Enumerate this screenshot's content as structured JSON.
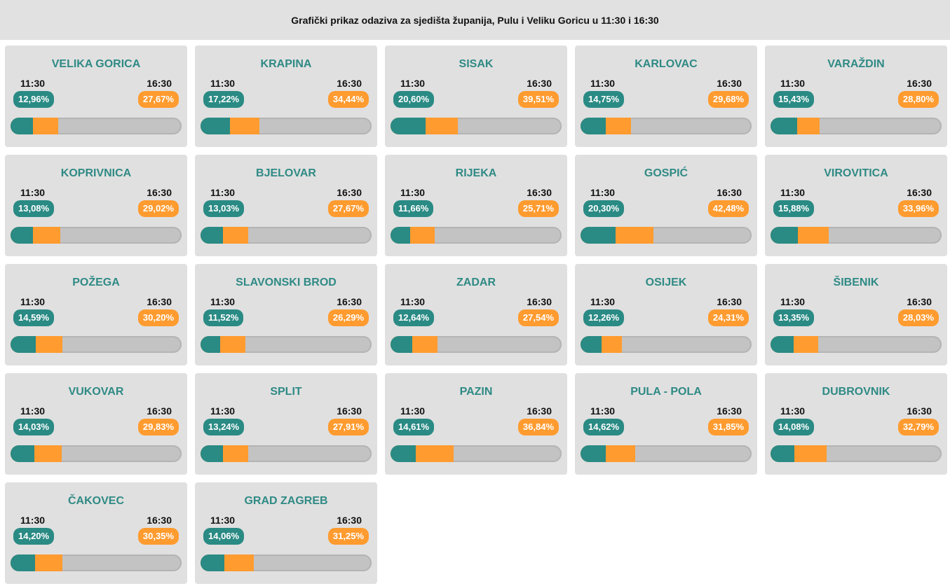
{
  "title": "Grafički prikaz odaziva za sjedišta županija, Pulu i Veliku Goricu u 11:30 i 16:30",
  "colors": {
    "teal": "#2a8a84",
    "orange": "#ff9b2f",
    "track": "#c3c3c3"
  },
  "chart_data": {
    "type": "bar",
    "title": "Grafički prikaz odaziva za sjedišta županija, Pulu i Veliku Goricu u 11:30 i 16:30",
    "series_names": [
      "11:30",
      "16:30"
    ],
    "bar_max_percent": 100,
    "cities": [
      {
        "name": "VELIKA GORICA",
        "t1": "11:30",
        "t2": "16:30",
        "v1": 12.96,
        "v2": 27.67,
        "label1": "12,96%",
        "label2": "27,67%"
      },
      {
        "name": "KRAPINA",
        "t1": "11:30",
        "t2": "16:30",
        "v1": 17.22,
        "v2": 34.44,
        "label1": "17,22%",
        "label2": "34,44%"
      },
      {
        "name": "SISAK",
        "t1": "11:30",
        "t2": "16:30",
        "v1": 20.6,
        "v2": 39.51,
        "label1": "20,60%",
        "label2": "39,51%"
      },
      {
        "name": "KARLOVAC",
        "t1": "11:30",
        "t2": "16:30",
        "v1": 14.75,
        "v2": 29.68,
        "label1": "14,75%",
        "label2": "29,68%"
      },
      {
        "name": "VARAŽDIN",
        "t1": "11:30",
        "t2": "16:30",
        "v1": 15.43,
        "v2": 28.8,
        "label1": "15,43%",
        "label2": "28,80%"
      },
      {
        "name": "KOPRIVNICA",
        "t1": "11:30",
        "t2": "16:30",
        "v1": 13.08,
        "v2": 29.02,
        "label1": "13,08%",
        "label2": "29,02%"
      },
      {
        "name": "BJELOVAR",
        "t1": "11:30",
        "t2": "16:30",
        "v1": 13.03,
        "v2": 27.67,
        "label1": "13,03%",
        "label2": "27,67%"
      },
      {
        "name": "RIJEKA",
        "t1": "11:30",
        "t2": "16:30",
        "v1": 11.66,
        "v2": 25.71,
        "label1": "11,66%",
        "label2": "25,71%"
      },
      {
        "name": "GOSPIĆ",
        "t1": "11:30",
        "t2": "16:30",
        "v1": 20.3,
        "v2": 42.48,
        "label1": "20,30%",
        "label2": "42,48%"
      },
      {
        "name": "VIROVITICA",
        "t1": "11:30",
        "t2": "16:30",
        "v1": 15.88,
        "v2": 33.96,
        "label1": "15,88%",
        "label2": "33,96%"
      },
      {
        "name": "POŽEGA",
        "t1": "11:30",
        "t2": "16:30",
        "v1": 14.59,
        "v2": 30.2,
        "label1": "14,59%",
        "label2": "30,20%"
      },
      {
        "name": "SLAVONSKI BROD",
        "t1": "11:30",
        "t2": "16:30",
        "v1": 11.52,
        "v2": 26.29,
        "label1": "11,52%",
        "label2": "26,29%"
      },
      {
        "name": "ZADAR",
        "t1": "11:30",
        "t2": "16:30",
        "v1": 12.64,
        "v2": 27.54,
        "label1": "12,64%",
        "label2": "27,54%"
      },
      {
        "name": "OSIJEK",
        "t1": "11:30",
        "t2": "16:30",
        "v1": 12.26,
        "v2": 24.31,
        "label1": "12,26%",
        "label2": "24,31%"
      },
      {
        "name": "ŠIBENIK",
        "t1": "11:30",
        "t2": "16:30",
        "v1": 13.35,
        "v2": 28.03,
        "label1": "13,35%",
        "label2": "28,03%"
      },
      {
        "name": "VUKOVAR",
        "t1": "11:30",
        "t2": "16:30",
        "v1": 14.03,
        "v2": 29.83,
        "label1": "14,03%",
        "label2": "29,83%"
      },
      {
        "name": "SPLIT",
        "t1": "11:30",
        "t2": "16:30",
        "v1": 13.24,
        "v2": 27.91,
        "label1": "13,24%",
        "label2": "27,91%"
      },
      {
        "name": "PAZIN",
        "t1": "11:30",
        "t2": "16:30",
        "v1": 14.61,
        "v2": 36.84,
        "label1": "14,61%",
        "label2": "36,84%"
      },
      {
        "name": "PULA - POLA",
        "t1": "11:30",
        "t2": "16:30",
        "v1": 14.62,
        "v2": 31.85,
        "label1": "14,62%",
        "label2": "31,85%"
      },
      {
        "name": "DUBROVNIK",
        "t1": "11:30",
        "t2": "16:30",
        "v1": 14.08,
        "v2": 32.79,
        "label1": "14,08%",
        "label2": "32,79%"
      },
      {
        "name": "ČAKOVEC",
        "t1": "11:30",
        "t2": "16:30",
        "v1": 14.2,
        "v2": 30.35,
        "label1": "14,20%",
        "label2": "30,35%"
      },
      {
        "name": "GRAD ZAGREB",
        "t1": "11:30",
        "t2": "16:30",
        "v1": 14.06,
        "v2": 31.25,
        "label1": "14,06%",
        "label2": "31,25%"
      }
    ]
  }
}
